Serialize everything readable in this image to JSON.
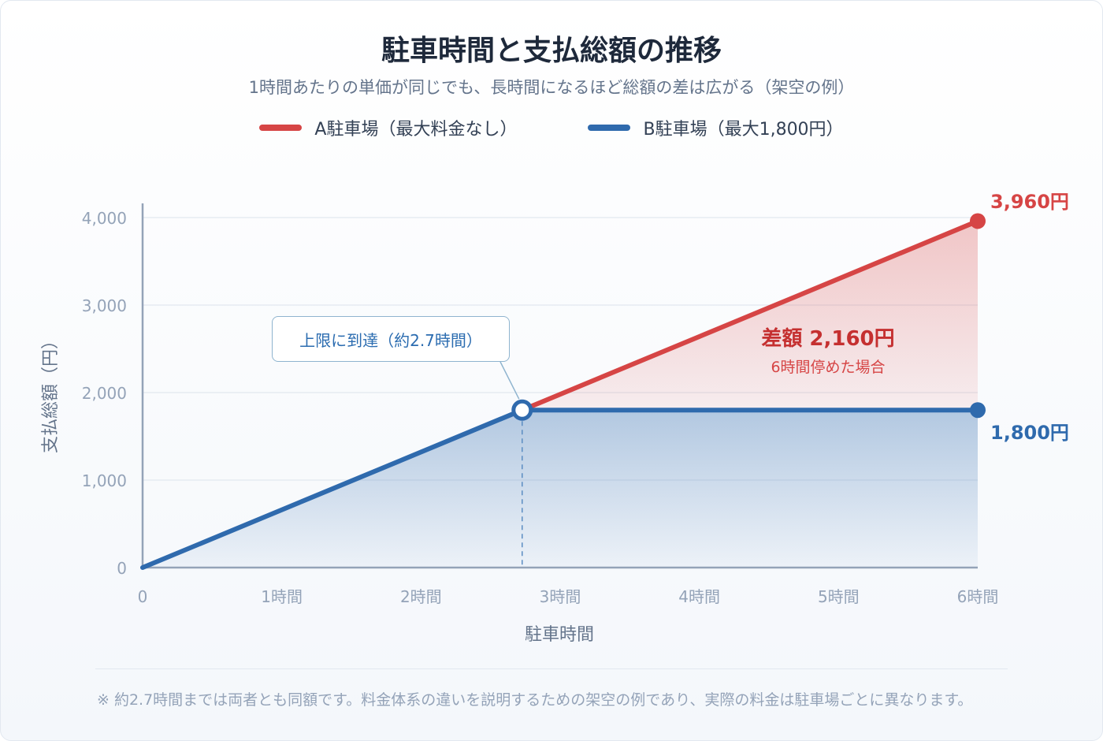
{
  "title": "駐車時間と支払総額の推移",
  "subtitle": "1時間あたりの単価が同じでも、長時間になるほど総額の差は広がる（架空の例）",
  "legend": [
    {
      "label": "A駐車場（最大料金なし）",
      "color": "#d64545"
    },
    {
      "label": "B駐車場（最大1,800円）",
      "color": "#2f6aad"
    }
  ],
  "annotations": {
    "cap_reached": "上限に到達（約2.7時間）",
    "diff_title": "差額 2,160円",
    "diff_sub": "6時間停めた場合",
    "end_a": "3,960円",
    "end_b": "1,800円"
  },
  "footnote": "※ 約2.7時間までは両者とも同額です。料金体系の違いを説明するための架空の例であり、実際の料金は駐車場ごとに異なります。",
  "chart_data": {
    "type": "line",
    "xlabel": "駐車時間",
    "ylabel": "支払総額（円）",
    "xlim": [
      0,
      6
    ],
    "ylim": [
      0,
      4000
    ],
    "x_ticks": [
      {
        "value": 0,
        "label": "0"
      },
      {
        "value": 1,
        "label": "1時間"
      },
      {
        "value": 2,
        "label": "2時間"
      },
      {
        "value": 3,
        "label": "3時間"
      },
      {
        "value": 4,
        "label": "4時間"
      },
      {
        "value": 5,
        "label": "5時間"
      },
      {
        "value": 6,
        "label": "6時間"
      }
    ],
    "y_ticks": [
      {
        "value": 0,
        "label": "0"
      },
      {
        "value": 1000,
        "label": "1,000"
      },
      {
        "value": 2000,
        "label": "2,000"
      },
      {
        "value": 3000,
        "label": "3,000"
      },
      {
        "value": 4000,
        "label": "4,000"
      }
    ],
    "grid": true,
    "series": [
      {
        "name": "A駐車場（最大料金なし）",
        "color": "#d64545",
        "x": [
          0,
          2.727,
          6
        ],
        "y": [
          0,
          1800,
          3960
        ]
      },
      {
        "name": "B駐車場（最大1,800円）",
        "color": "#2f6aad",
        "x": [
          0,
          2.727,
          6
        ],
        "y": [
          0,
          1800,
          1800
        ]
      }
    ],
    "cap_point": {
      "x": 2.727,
      "y": 1800
    }
  }
}
